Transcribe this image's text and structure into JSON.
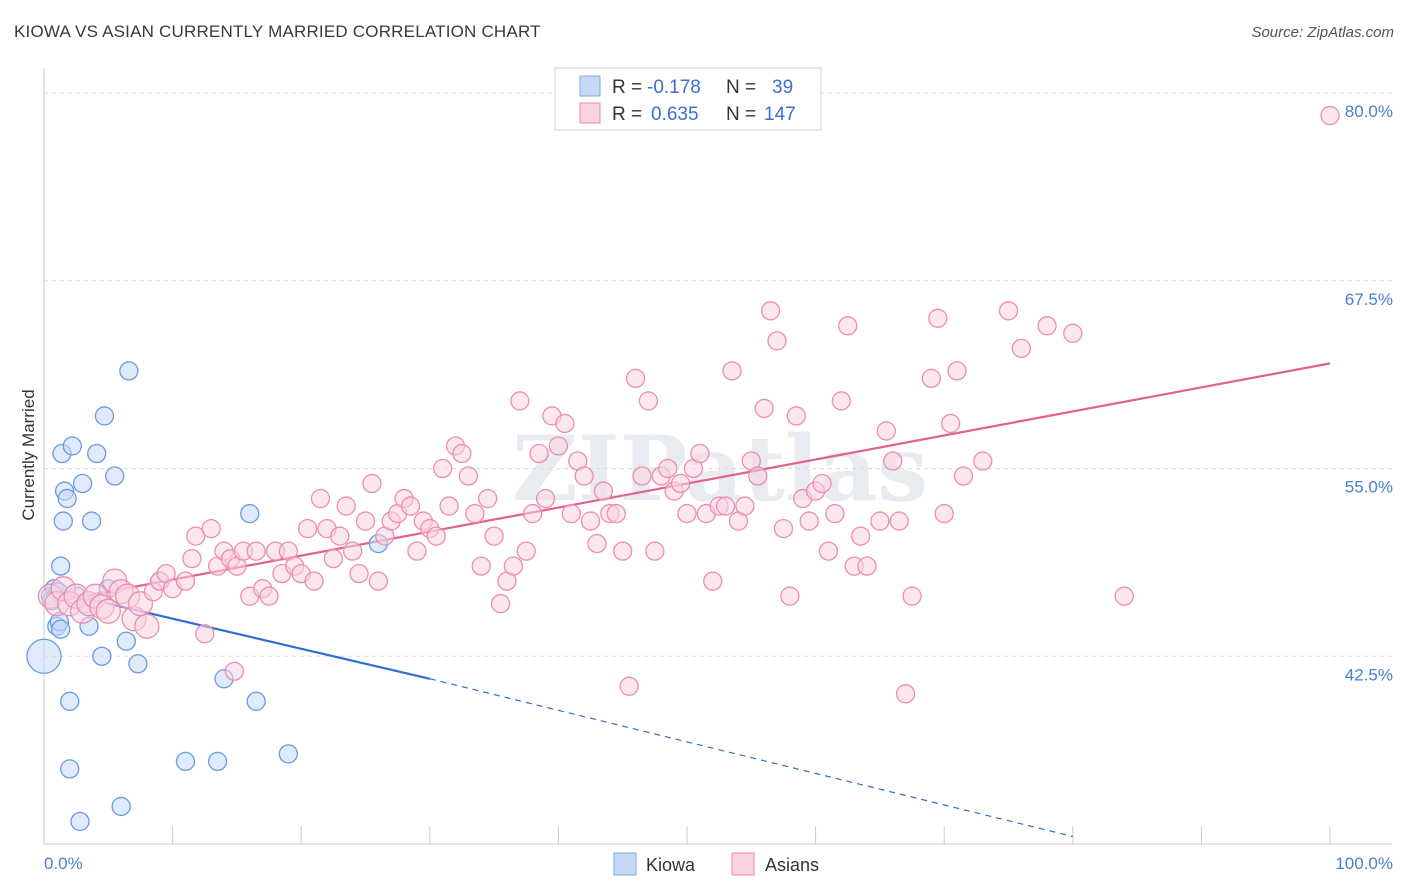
{
  "title": "KIOWA VS ASIAN CURRENTLY MARRIED CORRELATION CHART",
  "source": "Source: ZipAtlas.com",
  "watermark": "ZIPatlas",
  "legend": {
    "rows": [
      {
        "r_label": "R =",
        "r_value": "-0.178",
        "n_label": "N =",
        "n_value": "39",
        "color": "#7fa8e0"
      },
      {
        "r_label": "R =",
        "r_value": "0.635",
        "n_label": "N =",
        "n_value": "147",
        "color": "#f08aab"
      }
    ]
  },
  "chart_data": {
    "type": "scatter",
    "xlabel": "",
    "ylabel": "Currently Married",
    "xlim": [
      0,
      100
    ],
    "ylim": [
      30,
      81
    ],
    "x_tick_labels": [
      "0.0%",
      "100.0%"
    ],
    "y_ticks": [
      42.5,
      55.0,
      67.5,
      80.0
    ],
    "y_tick_labels": [
      "42.5%",
      "55.0%",
      "67.5%",
      "80.0%"
    ],
    "grid": true,
    "series": [
      {
        "name": "Kiowa",
        "color": "#6a9be0",
        "fill": "#c5d9f5",
        "trend": {
          "x0": 0,
          "y0": 47.0,
          "x1": 30,
          "y1": 41.0,
          "dash_x1": 80,
          "dash_y1": 30.5,
          "color": "#2e6fd3"
        },
        "points": [
          [
            0.0,
            42.5
          ],
          [
            0.5,
            46.5
          ],
          [
            0.8,
            47.0
          ],
          [
            1.0,
            44.5
          ],
          [
            1.2,
            44.8
          ],
          [
            1.5,
            51.5
          ],
          [
            1.3,
            44.3
          ],
          [
            1.4,
            56.0
          ],
          [
            1.6,
            53.5
          ],
          [
            1.3,
            48.5
          ],
          [
            1.8,
            53.0
          ],
          [
            2.0,
            39.5
          ],
          [
            2.0,
            35.0
          ],
          [
            2.2,
            56.5
          ],
          [
            2.8,
            31.5
          ],
          [
            3.0,
            54.0
          ],
          [
            3.5,
            44.5
          ],
          [
            3.7,
            51.5
          ],
          [
            4.1,
            56.0
          ],
          [
            4.5,
            42.5
          ],
          [
            5.0,
            47.0
          ],
          [
            4.7,
            58.5
          ],
          [
            5.5,
            54.5
          ],
          [
            6.0,
            32.5
          ],
          [
            6.4,
            43.5
          ],
          [
            6.6,
            61.5
          ],
          [
            7.3,
            42.0
          ],
          [
            9.0,
            47.5
          ],
          [
            11.0,
            35.5
          ],
          [
            13.5,
            35.5
          ],
          [
            14.0,
            41.0
          ],
          [
            16.0,
            52.0
          ],
          [
            16.5,
            39.5
          ],
          [
            19.0,
            36.0
          ],
          [
            26.0,
            50.0
          ],
          [
            2.5,
            46.5
          ],
          [
            3.2,
            46.0
          ],
          [
            1.1,
            46.8
          ],
          [
            0.6,
            46.2
          ]
        ]
      },
      {
        "name": "Asians",
        "color": "#ec8db0",
        "fill": "#f9d3e0",
        "trend": {
          "x0": 0,
          "y0": 46.0,
          "x1": 100,
          "y1": 62.0,
          "color": "#e0628f"
        },
        "points": [
          [
            0.5,
            46.5
          ],
          [
            1.0,
            46.0
          ],
          [
            1.5,
            47.0
          ],
          [
            2.0,
            46.0
          ],
          [
            2.5,
            46.5
          ],
          [
            3.0,
            45.5
          ],
          [
            3.5,
            46.0
          ],
          [
            4.0,
            46.5
          ],
          [
            4.5,
            45.8
          ],
          [
            5.0,
            45.5
          ],
          [
            5.5,
            47.5
          ],
          [
            6.0,
            46.8
          ],
          [
            6.5,
            46.5
          ],
          [
            7.0,
            45.0
          ],
          [
            7.5,
            46.0
          ],
          [
            8.0,
            44.5
          ],
          [
            8.5,
            46.8
          ],
          [
            9.0,
            47.5
          ],
          [
            9.5,
            48.0
          ],
          [
            10.0,
            47.0
          ],
          [
            11.0,
            47.5
          ],
          [
            11.5,
            49.0
          ],
          [
            11.8,
            50.5
          ],
          [
            12.5,
            44.0
          ],
          [
            13.0,
            51.0
          ],
          [
            13.5,
            48.5
          ],
          [
            14.0,
            49.5
          ],
          [
            14.5,
            49.0
          ],
          [
            14.8,
            41.5
          ],
          [
            15.0,
            48.5
          ],
          [
            15.5,
            49.5
          ],
          [
            16.0,
            46.5
          ],
          [
            16.5,
            49.5
          ],
          [
            17.0,
            47.0
          ],
          [
            17.5,
            46.5
          ],
          [
            18.0,
            49.5
          ],
          [
            18.5,
            48.0
          ],
          [
            19.0,
            49.5
          ],
          [
            19.5,
            48.5
          ],
          [
            20.0,
            48.0
          ],
          [
            20.5,
            51.0
          ],
          [
            21.0,
            47.5
          ],
          [
            21.5,
            53.0
          ],
          [
            22.0,
            51.0
          ],
          [
            22.5,
            49.0
          ],
          [
            23.0,
            50.5
          ],
          [
            23.5,
            52.5
          ],
          [
            24.0,
            49.5
          ],
          [
            24.5,
            48.0
          ],
          [
            25.0,
            51.5
          ],
          [
            25.5,
            54.0
          ],
          [
            26.0,
            47.5
          ],
          [
            26.5,
            50.5
          ],
          [
            27.0,
            51.5
          ],
          [
            27.5,
            52.0
          ],
          [
            28.0,
            53.0
          ],
          [
            28.5,
            52.5
          ],
          [
            29.0,
            49.5
          ],
          [
            29.5,
            51.5
          ],
          [
            30.0,
            51.0
          ],
          [
            30.5,
            50.5
          ],
          [
            31.0,
            55.0
          ],
          [
            31.5,
            52.5
          ],
          [
            32.0,
            56.5
          ],
          [
            32.5,
            56.0
          ],
          [
            33.0,
            54.5
          ],
          [
            33.5,
            52.0
          ],
          [
            34.0,
            48.5
          ],
          [
            34.5,
            53.0
          ],
          [
            35.0,
            50.5
          ],
          [
            35.5,
            46.0
          ],
          [
            36.0,
            47.5
          ],
          [
            36.5,
            48.5
          ],
          [
            37.0,
            59.5
          ],
          [
            37.5,
            49.5
          ],
          [
            38.0,
            52.0
          ],
          [
            38.5,
            56.0
          ],
          [
            39.0,
            53.0
          ],
          [
            39.5,
            58.5
          ],
          [
            40.0,
            56.5
          ],
          [
            40.5,
            58.0
          ],
          [
            41.0,
            52.0
          ],
          [
            41.5,
            55.5
          ],
          [
            42.0,
            54.5
          ],
          [
            42.5,
            51.5
          ],
          [
            43.0,
            50.0
          ],
          [
            43.5,
            53.5
          ],
          [
            44.0,
            52.0
          ],
          [
            44.5,
            52.0
          ],
          [
            45.0,
            49.5
          ],
          [
            45.5,
            40.5
          ],
          [
            46.0,
            61.0
          ],
          [
            46.5,
            54.5
          ],
          [
            47.0,
            59.5
          ],
          [
            47.5,
            49.5
          ],
          [
            48.0,
            54.5
          ],
          [
            48.5,
            55.0
          ],
          [
            49.0,
            53.5
          ],
          [
            49.5,
            54.0
          ],
          [
            50.0,
            52.0
          ],
          [
            50.5,
            55.0
          ],
          [
            51.0,
            56.0
          ],
          [
            51.5,
            52.0
          ],
          [
            52.0,
            47.5
          ],
          [
            52.5,
            52.5
          ],
          [
            53.0,
            52.5
          ],
          [
            53.5,
            61.5
          ],
          [
            54.0,
            51.5
          ],
          [
            54.5,
            52.5
          ],
          [
            55.0,
            55.5
          ],
          [
            55.5,
            54.5
          ],
          [
            56.0,
            59.0
          ],
          [
            56.5,
            65.5
          ],
          [
            57.0,
            63.5
          ],
          [
            57.5,
            51.0
          ],
          [
            58.0,
            46.5
          ],
          [
            58.5,
            58.5
          ],
          [
            59.0,
            53.0
          ],
          [
            59.5,
            51.5
          ],
          [
            60.0,
            53.5
          ],
          [
            60.5,
            54.0
          ],
          [
            61.0,
            49.5
          ],
          [
            61.5,
            52.0
          ],
          [
            62.0,
            59.5
          ],
          [
            62.5,
            64.5
          ],
          [
            63.0,
            48.5
          ],
          [
            63.5,
            50.5
          ],
          [
            64.0,
            48.5
          ],
          [
            65.0,
            51.5
          ],
          [
            65.5,
            57.5
          ],
          [
            66.0,
            55.5
          ],
          [
            66.5,
            51.5
          ],
          [
            67.0,
            40.0
          ],
          [
            67.5,
            46.5
          ],
          [
            69.0,
            61.0
          ],
          [
            69.5,
            65.0
          ],
          [
            70.0,
            52.0
          ],
          [
            70.5,
            58.0
          ],
          [
            71.0,
            61.5
          ],
          [
            71.5,
            54.5
          ],
          [
            73.0,
            55.5
          ],
          [
            75.0,
            65.5
          ],
          [
            76.0,
            63.0
          ],
          [
            78.0,
            64.5
          ],
          [
            80.0,
            64.0
          ],
          [
            84.0,
            46.5
          ],
          [
            100.0,
            78.5
          ]
        ]
      }
    ]
  },
  "bottom_legend": [
    {
      "label": "Kiowa",
      "color": "#7fa8e0"
    },
    {
      "label": "Asians",
      "color": "#f08aab"
    }
  ]
}
